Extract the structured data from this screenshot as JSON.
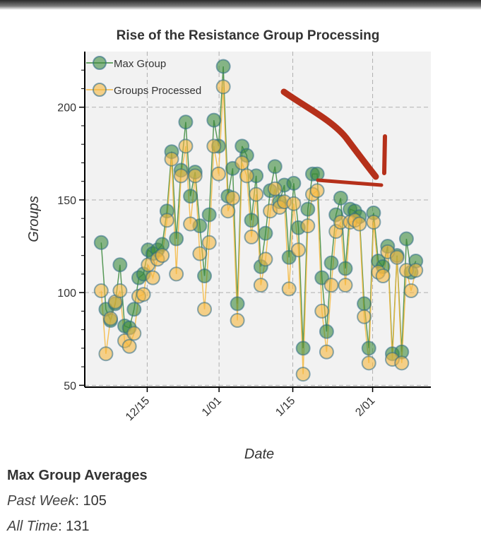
{
  "chart_data": {
    "type": "line",
    "title": "Rise of the Resistance Group Processing",
    "xlabel": "Date",
    "ylabel": "Groups",
    "ylim": [
      49,
      230
    ],
    "xlim": [
      -3.5,
      70.2
    ],
    "yticks": [
      50,
      100,
      150,
      200
    ],
    "xticks": [
      {
        "label": "12/15",
        "x": 9.8
      },
      {
        "label": "1/01",
        "x": 25.1
      },
      {
        "label": "1/15",
        "x": 40.8
      },
      {
        "label": "2/01",
        "x": 57.8
      }
    ],
    "grid": true,
    "legend_position": "top-left",
    "series": [
      {
        "name": "Max Group",
        "color": "#3c8a3c",
        "values": [
          127,
          91,
          85,
          94,
          115,
          82,
          81,
          91,
          108,
          110,
          123,
          121,
          123,
          126,
          144,
          176,
          129,
          166,
          192,
          152,
          165,
          136,
          109,
          142,
          193,
          179,
          222,
          152,
          167,
          94,
          179,
          174,
          139,
          163,
          114,
          132,
          155,
          168,
          149,
          158,
          119,
          159,
          135,
          70,
          145,
          164,
          164,
          108,
          79,
          116,
          142,
          151,
          113,
          145,
          144,
          141,
          94,
          70,
          143,
          117,
          114,
          125,
          67,
          120,
          68,
          129,
          111,
          117
        ]
      },
      {
        "name": "Groups Processed",
        "color": "#f5b840",
        "values": [
          101,
          67,
          86,
          95,
          101,
          74,
          71,
          78,
          98,
          99,
          115,
          108,
          118,
          120,
          139,
          172,
          110,
          163,
          179,
          137,
          163,
          121,
          91,
          127,
          179,
          164,
          211,
          144,
          151,
          85,
          170,
          163,
          130,
          153,
          104,
          118,
          144,
          156,
          146,
          149,
          102,
          148,
          123,
          56,
          136,
          153,
          155,
          90,
          68,
          104,
          133,
          138,
          104,
          138,
          139,
          137,
          87,
          62,
          138,
          111,
          109,
          122,
          64,
          119,
          62,
          112,
          101,
          112
        ]
      }
    ],
    "annotation": "hand-drawn red arrow pointing to early February"
  },
  "stats": {
    "heading": "Max Group Averages",
    "past_week_label": "Past Week",
    "past_week_value": ": 105",
    "all_time_label": "All Time",
    "all_time_value": ": 131"
  }
}
